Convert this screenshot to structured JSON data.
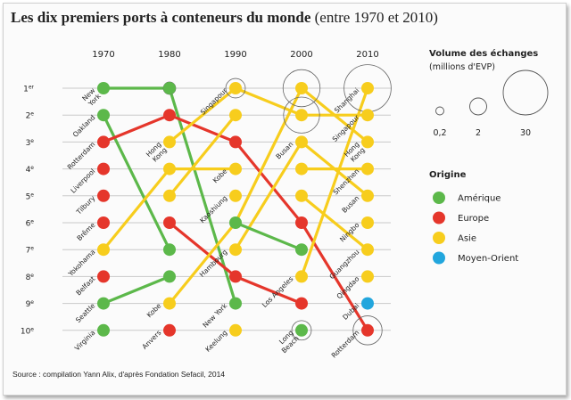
{
  "title": {
    "main": "Les dix premiers ports à conteneurs du monde",
    "sub": "(entre 1970 et 2010)"
  },
  "source": "Source : compilation Yann Alix, d'après Fondation Sefacil, 2014",
  "colors": {
    "Amérique": "#5cb84a",
    "Europe": "#e5362b",
    "Asie": "#f7cd1d",
    "Moyen-Orient": "#22a6dd"
  },
  "chart_data": {
    "type": "line",
    "x": [
      "1970",
      "1980",
      "1990",
      "2000",
      "2010"
    ],
    "rank_labels": [
      "1er",
      "2e",
      "3e",
      "4e",
      "5e",
      "6e",
      "7e",
      "8e",
      "9e",
      "10e"
    ],
    "y_reversed": true,
    "ylim": [
      1,
      10
    ],
    "grid": true,
    "legend_placement": "right",
    "volume_legend": {
      "title": "Volume des échanges",
      "unit": "(millions d'EVP)",
      "samples": [
        0.2,
        2,
        30
      ],
      "sample_labels": [
        "0,2",
        "2",
        "30"
      ]
    },
    "origin_legend": {
      "title": "Origine",
      "entries": [
        "Amérique",
        "Europe",
        "Asie",
        "Moyen-Orient"
      ]
    },
    "labels": [
      {
        "col": 0,
        "rank": 1,
        "text": "New York"
      },
      {
        "col": 0,
        "rank": 2,
        "text": "Oakland"
      },
      {
        "col": 0,
        "rank": 3,
        "text": "Rotterdam"
      },
      {
        "col": 0,
        "rank": 4,
        "text": "Liverpool"
      },
      {
        "col": 0,
        "rank": 5,
        "text": "Tilbury"
      },
      {
        "col": 0,
        "rank": 6,
        "text": "Brême"
      },
      {
        "col": 0,
        "rank": 7,
        "text": "Yokohama"
      },
      {
        "col": 0,
        "rank": 8,
        "text": "Belfast"
      },
      {
        "col": 0,
        "rank": 9,
        "text": "Seattle"
      },
      {
        "col": 0,
        "rank": 10,
        "text": "Virginia"
      },
      {
        "col": 1,
        "rank": 3,
        "text": "Hong Kong"
      },
      {
        "col": 1,
        "rank": 9,
        "text": "Kobe"
      },
      {
        "col": 1,
        "rank": 10,
        "text": "Anvers"
      },
      {
        "col": 2,
        "rank": 1,
        "text": "Singapour"
      },
      {
        "col": 2,
        "rank": 4,
        "text": "Kobe"
      },
      {
        "col": 2,
        "rank": 5,
        "text": "Kaoshiung"
      },
      {
        "col": 2,
        "rank": 7,
        "text": "Hambourg"
      },
      {
        "col": 2,
        "rank": 9,
        "text": "New York"
      },
      {
        "col": 2,
        "rank": 10,
        "text": "Keelung"
      },
      {
        "col": 3,
        "rank": 3,
        "text": "Busan"
      },
      {
        "col": 3,
        "rank": 8,
        "text": "Los Angeles"
      },
      {
        "col": 3,
        "rank": 10,
        "text": "Long Beach"
      },
      {
        "col": 4,
        "rank": 1,
        "text": "Shanghai"
      },
      {
        "col": 4,
        "rank": 2,
        "text": "Singapour"
      },
      {
        "col": 4,
        "rank": 3,
        "text": "Hong Kong"
      },
      {
        "col": 4,
        "rank": 4,
        "text": "Shenzhen"
      },
      {
        "col": 4,
        "rank": 5,
        "text": "Busan"
      },
      {
        "col": 4,
        "rank": 6,
        "text": "Ningbo"
      },
      {
        "col": 4,
        "rank": 7,
        "text": "Guangzhou"
      },
      {
        "col": 4,
        "rank": 8,
        "text": "Qingdao"
      },
      {
        "col": 4,
        "rank": 9,
        "text": "Dubai"
      },
      {
        "col": 4,
        "rank": 10,
        "text": "Rotterdam"
      }
    ],
    "series": [
      {
        "origin": "Amérique",
        "ranks": [
          1,
          1,
          9,
          null,
          null
        ],
        "volumes": [
          0.2,
          2,
          null,
          null,
          null
        ]
      },
      {
        "origin": "Amérique",
        "ranks": [
          2,
          7,
          null,
          null,
          null
        ]
      },
      {
        "origin": "Europe",
        "ranks": [
          3,
          2,
          3,
          6,
          10
        ],
        "volumes": [
          null,
          null,
          null,
          null,
          11
        ]
      },
      {
        "origin": "Amérique",
        "ranks": [
          9,
          8,
          null,
          null,
          null
        ]
      },
      {
        "origin": "Europe",
        "ranks": [
          null,
          6,
          8,
          9,
          null
        ]
      },
      {
        "origin": "Asie",
        "ranks": [
          null,
          3,
          1,
          2,
          2
        ],
        "volumes": [
          null,
          null,
          5,
          17,
          null
        ]
      },
      {
        "origin": "Asie",
        "ranks": [
          7,
          4,
          4,
          null,
          null
        ]
      },
      {
        "origin": "Asie",
        "ranks": [
          null,
          9,
          6,
          1,
          3
        ],
        "volumes": [
          null,
          null,
          null,
          18,
          null
        ]
      },
      {
        "origin": "Asie",
        "ranks": [
          null,
          null,
          7,
          3,
          5
        ]
      },
      {
        "origin": "Asie",
        "ranks": [
          null,
          5,
          2,
          null,
          null
        ]
      },
      {
        "origin": "Amérique",
        "ranks": [
          null,
          null,
          6,
          7,
          null
        ]
      },
      {
        "origin": "Asie",
        "ranks": [
          null,
          null,
          null,
          8,
          1
        ],
        "volumes": [
          null,
          null,
          null,
          null,
          29
        ]
      },
      {
        "origin": "Asie",
        "ranks": [
          null,
          null,
          null,
          4,
          4
        ]
      },
      {
        "origin": "Asie",
        "ranks": [
          null,
          null,
          null,
          5,
          7
        ]
      }
    ],
    "points": [
      {
        "col": 0,
        "rank": 4,
        "origin": "Europe"
      },
      {
        "col": 0,
        "rank": 5,
        "origin": "Europe"
      },
      {
        "col": 0,
        "rank": 6,
        "origin": "Europe"
      },
      {
        "col": 0,
        "rank": 8,
        "origin": "Europe"
      },
      {
        "col": 0,
        "rank": 10,
        "origin": "Amérique",
        "volume": 0.2
      },
      {
        "col": 1,
        "rank": 10,
        "origin": "Europe",
        "volume": 0.2
      },
      {
        "col": 2,
        "rank": 5,
        "origin": "Asie"
      },
      {
        "col": 2,
        "rank": 10,
        "origin": "Asie",
        "volume": 0.5
      },
      {
        "col": 3,
        "rank": 10,
        "origin": "Amérique",
        "volume": 5
      },
      {
        "col": 4,
        "rank": 6,
        "origin": "Asie"
      },
      {
        "col": 4,
        "rank": 8,
        "origin": "Asie"
      },
      {
        "col": 4,
        "rank": 9,
        "origin": "Moyen-Orient"
      }
    ]
  }
}
